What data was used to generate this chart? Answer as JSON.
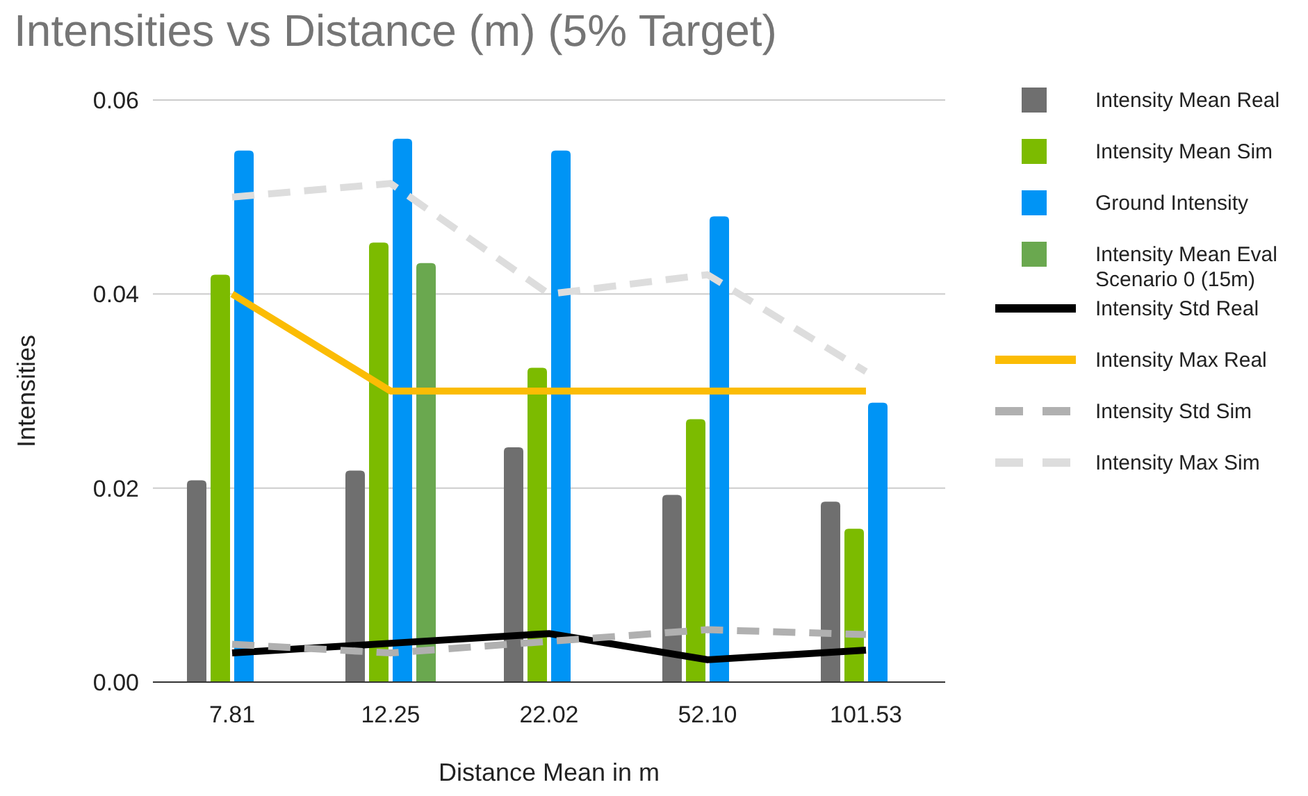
{
  "chart_data": {
    "type": "bar",
    "title": "Intensities vs Distance (m) (5% Target)",
    "xlabel": "Distance Mean in m",
    "ylabel": "Intensities",
    "categories": [
      "7.81",
      "12.25",
      "22.02",
      "52.10",
      "101.53"
    ],
    "series": [
      {
        "name": "Intensity Mean Real",
        "color": "#6f6f6f",
        "values": [
          0.0208,
          0.0218,
          0.0242,
          0.0193,
          0.0186
        ]
      },
      {
        "name": "Intensity Mean Sim",
        "color": "#7cbb00",
        "values": [
          0.042,
          0.0453,
          0.0324,
          0.0271,
          0.0158
        ]
      },
      {
        "name": "Ground Intensity",
        "color": "#0094f5",
        "values": [
          0.0548,
          0.056,
          0.0548,
          0.048,
          0.0288
        ]
      },
      {
        "name": "Intensity Mean Eval Scenario 0 (15m)",
        "color": "#6aa84f",
        "values": [
          null,
          0.0432,
          null,
          null,
          null
        ]
      },
      {
        "name": "Intensity Std Real",
        "type": "line",
        "color": "#000000",
        "line_style": "solid",
        "values": [
          0.003,
          0.004,
          0.005,
          0.0023,
          0.0033
        ]
      },
      {
        "name": "Intensity Max Real",
        "type": "line",
        "color": "#fbbc04",
        "line_style": "solid",
        "values": [
          0.04,
          0.03,
          0.03,
          0.03,
          0.03
        ]
      },
      {
        "name": "Intensity Std Sim",
        "type": "line",
        "color": "#b0b0b0",
        "line_style": "dashed",
        "values": [
          0.0039,
          0.003,
          0.0042,
          0.0054,
          0.0049
        ]
      },
      {
        "name": "Intensity Max Sim",
        "type": "line",
        "color": "#dddddd",
        "line_style": "dashed",
        "values": [
          0.05,
          0.0514,
          0.04,
          0.042,
          0.032
        ]
      }
    ],
    "ylim": [
      0,
      0.06
    ],
    "yticks": [
      {
        "value": 0,
        "label": "0.00"
      },
      {
        "value": 0.02,
        "label": "0.02"
      },
      {
        "value": 0.04,
        "label": "0.04"
      },
      {
        "value": 0.06,
        "label": "0.06"
      }
    ],
    "grid": "y",
    "legend": "right"
  }
}
